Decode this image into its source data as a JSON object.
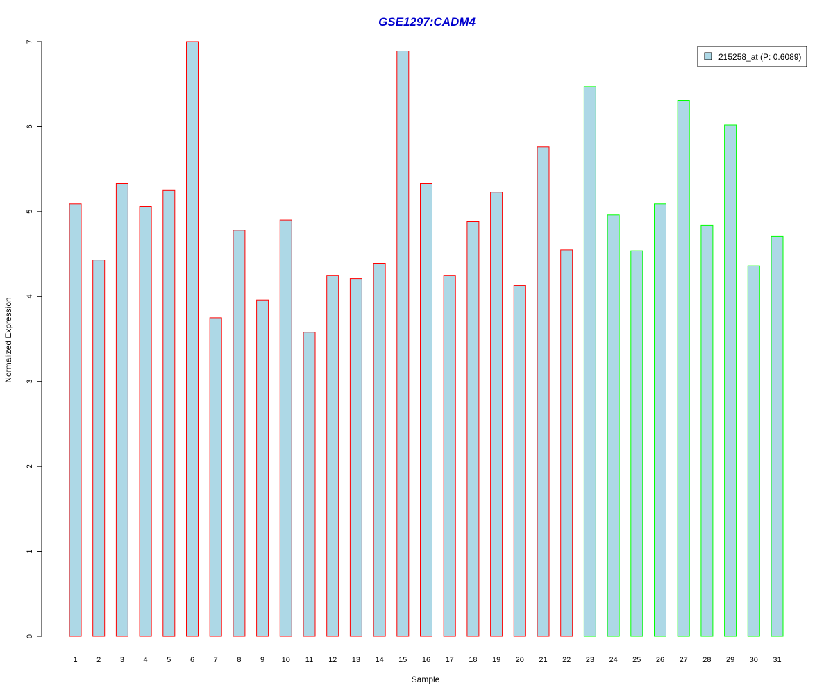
{
  "chart_data": {
    "type": "bar",
    "title": "GSE1297:CADM4",
    "xlabel": "Sample",
    "ylabel": "Normalized Expression",
    "ylim": [
      0,
      7
    ],
    "yticks": [
      "0",
      "1",
      "2",
      "3",
      "4",
      "5",
      "6",
      "7"
    ],
    "grid": false,
    "categories": [
      "1",
      "2",
      "3",
      "4",
      "5",
      "6",
      "7",
      "8",
      "9",
      "10",
      "11",
      "12",
      "13",
      "14",
      "15",
      "16",
      "17",
      "18",
      "19",
      "20",
      "21",
      "22",
      "23",
      "24",
      "25",
      "26",
      "27",
      "28",
      "29",
      "30",
      "31"
    ],
    "series": [
      {
        "name": "215258_at (P: 0.6089)",
        "values": [
          5.09,
          4.43,
          5.33,
          5.06,
          5.25,
          7.0,
          3.75,
          4.78,
          3.96,
          4.9,
          3.58,
          4.25,
          4.21,
          4.39,
          6.89,
          5.33,
          4.25,
          4.88,
          5.23,
          4.13,
          5.76,
          4.55,
          6.47,
          4.96,
          4.54,
          5.09,
          6.31,
          4.84,
          6.02,
          4.36,
          4.71
        ]
      }
    ],
    "groups": [
      0,
      0,
      0,
      0,
      0,
      0,
      0,
      0,
      0,
      0,
      0,
      0,
      0,
      0,
      0,
      0,
      0,
      0,
      0,
      0,
      0,
      0,
      1,
      1,
      1,
      1,
      1,
      1,
      1,
      1,
      1
    ],
    "legend_position": "top-right",
    "colors": {
      "fill": "#add8e6",
      "group_borders": [
        "#ff0000",
        "#00ff00"
      ],
      "title": "#0000cd",
      "axis": "#000000"
    }
  }
}
